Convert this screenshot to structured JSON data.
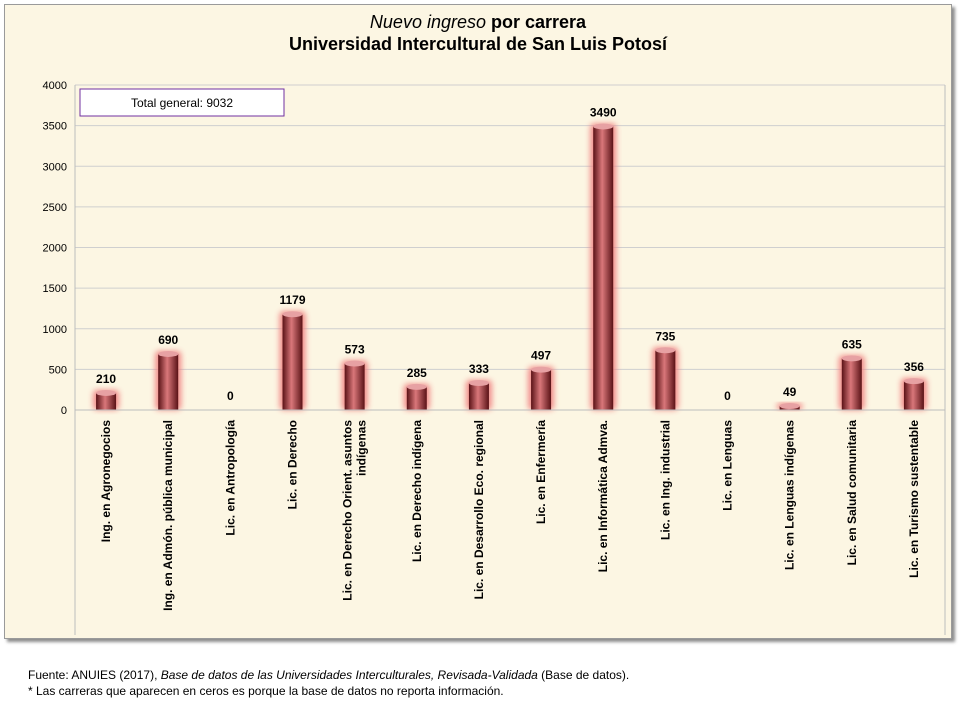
{
  "title_italic": "Nuevo ingreso",
  "title_rest": " por carrera",
  "subtitle": "Universidad Intercultural de San Luis Potosí",
  "total_box": "Total  general: 9032",
  "footer": {
    "line1_prefix": "Fuente: ANUIES (2017), ",
    "line1_italic": "Base de datos de las Universidades  Interculturales, Revisada-Validada",
    "line1_suffix": "  (Base de datos).",
    "line2": "* Las carreras que aparecen en ceros es porque la base de datos no reporta información."
  },
  "colors": {
    "bar": "#b0363a",
    "glow": "#f08080",
    "background": "#fcf6e3"
  },
  "chart_data": {
    "type": "bar",
    "title": "Nuevo ingreso por carrera Universidad Intercultural de San Luis Potosí",
    "xlabel": "",
    "ylabel": "",
    "ylim": [
      0,
      4000
    ],
    "yticks": [
      0,
      500,
      1000,
      1500,
      2000,
      2500,
      3000,
      3500,
      4000
    ],
    "grid": true,
    "categories": [
      [
        "Ing. en Agronegocios"
      ],
      [
        "Ing. en Admón. pública municipal"
      ],
      [
        "Lic. en Antropología"
      ],
      [
        "Lic. en Derecho"
      ],
      [
        "Lic. en Derecho Orient. asuntos",
        "indígenas"
      ],
      [
        "Lic. en Derecho indígena"
      ],
      [
        "Lic. en Desarrollo Eco. regional"
      ],
      [
        "Lic. en Enfermería"
      ],
      [
        "Lic. en Informática Admva."
      ],
      [
        "Lic. en Ing. industrial"
      ],
      [
        "Lic. en Lenguas"
      ],
      [
        "Lic. en Lenguas indígenas"
      ],
      [
        "Lic. en Salud comunitaria"
      ],
      [
        "Lic. en Turismo sustentable"
      ]
    ],
    "values": [
      210,
      690,
      0,
      1179,
      573,
      285,
      333,
      497,
      3490,
      735,
      0,
      49,
      635,
      356
    ]
  }
}
